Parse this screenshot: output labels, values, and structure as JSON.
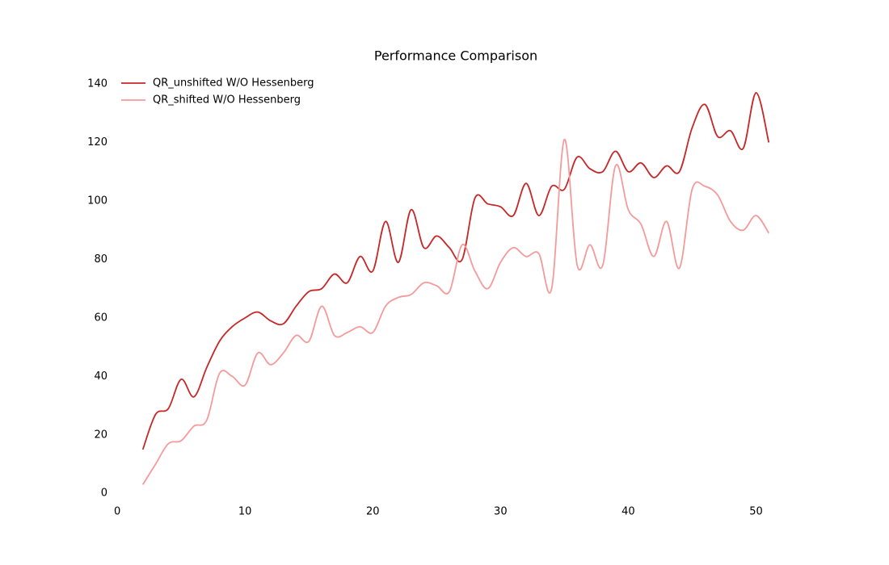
{
  "chart_data": {
    "type": "line",
    "title": "Performance Comparison",
    "x": [
      2,
      3,
      4,
      5,
      6,
      7,
      8,
      9,
      10,
      11,
      12,
      13,
      14,
      15,
      16,
      17,
      18,
      19,
      20,
      21,
      22,
      23,
      24,
      25,
      26,
      27,
      28,
      29,
      30,
      31,
      32,
      33,
      34,
      35,
      36,
      37,
      38,
      39,
      40,
      41,
      42,
      43,
      44,
      45,
      46,
      47,
      48,
      49,
      50,
      51
    ],
    "series": [
      {
        "name": "QR_unshifted W/O Hessenberg",
        "color": "#c62828",
        "values": [
          15,
          27,
          29,
          39,
          33,
          43,
          52,
          57,
          60,
          62,
          59,
          58,
          64,
          69,
          70,
          75,
          72,
          81,
          76,
          93,
          79,
          97,
          84,
          88,
          84,
          80,
          101,
          99,
          98,
          95,
          106,
          95,
          105,
          104,
          115,
          111,
          110,
          117,
          110,
          113,
          108,
          112,
          110,
          125,
          133,
          122,
          124,
          118,
          137,
          120
        ]
      },
      {
        "name": "QR_shifted W/O Hessenberg",
        "color": "#f59a9a",
        "values": [
          3,
          10,
          17,
          18,
          23,
          25,
          41,
          40,
          37,
          48,
          44,
          48,
          54,
          52,
          64,
          54,
          55,
          57,
          55,
          64,
          67,
          68,
          72,
          71,
          69,
          85,
          76,
          70,
          79,
          84,
          81,
          82,
          70,
          121,
          78,
          85,
          78,
          112,
          97,
          92,
          81,
          93,
          77,
          104,
          105,
          102,
          93,
          90,
          95,
          89
        ]
      }
    ],
    "xlim": [
      -0.45,
      53.45
    ],
    "ylim": [
      -3.8,
      145.8
    ],
    "xticks": [
      0,
      10,
      20,
      30,
      40,
      50
    ],
    "yticks": [
      0,
      20,
      40,
      60,
      80,
      100,
      120,
      140
    ],
    "legend": "upper left"
  }
}
